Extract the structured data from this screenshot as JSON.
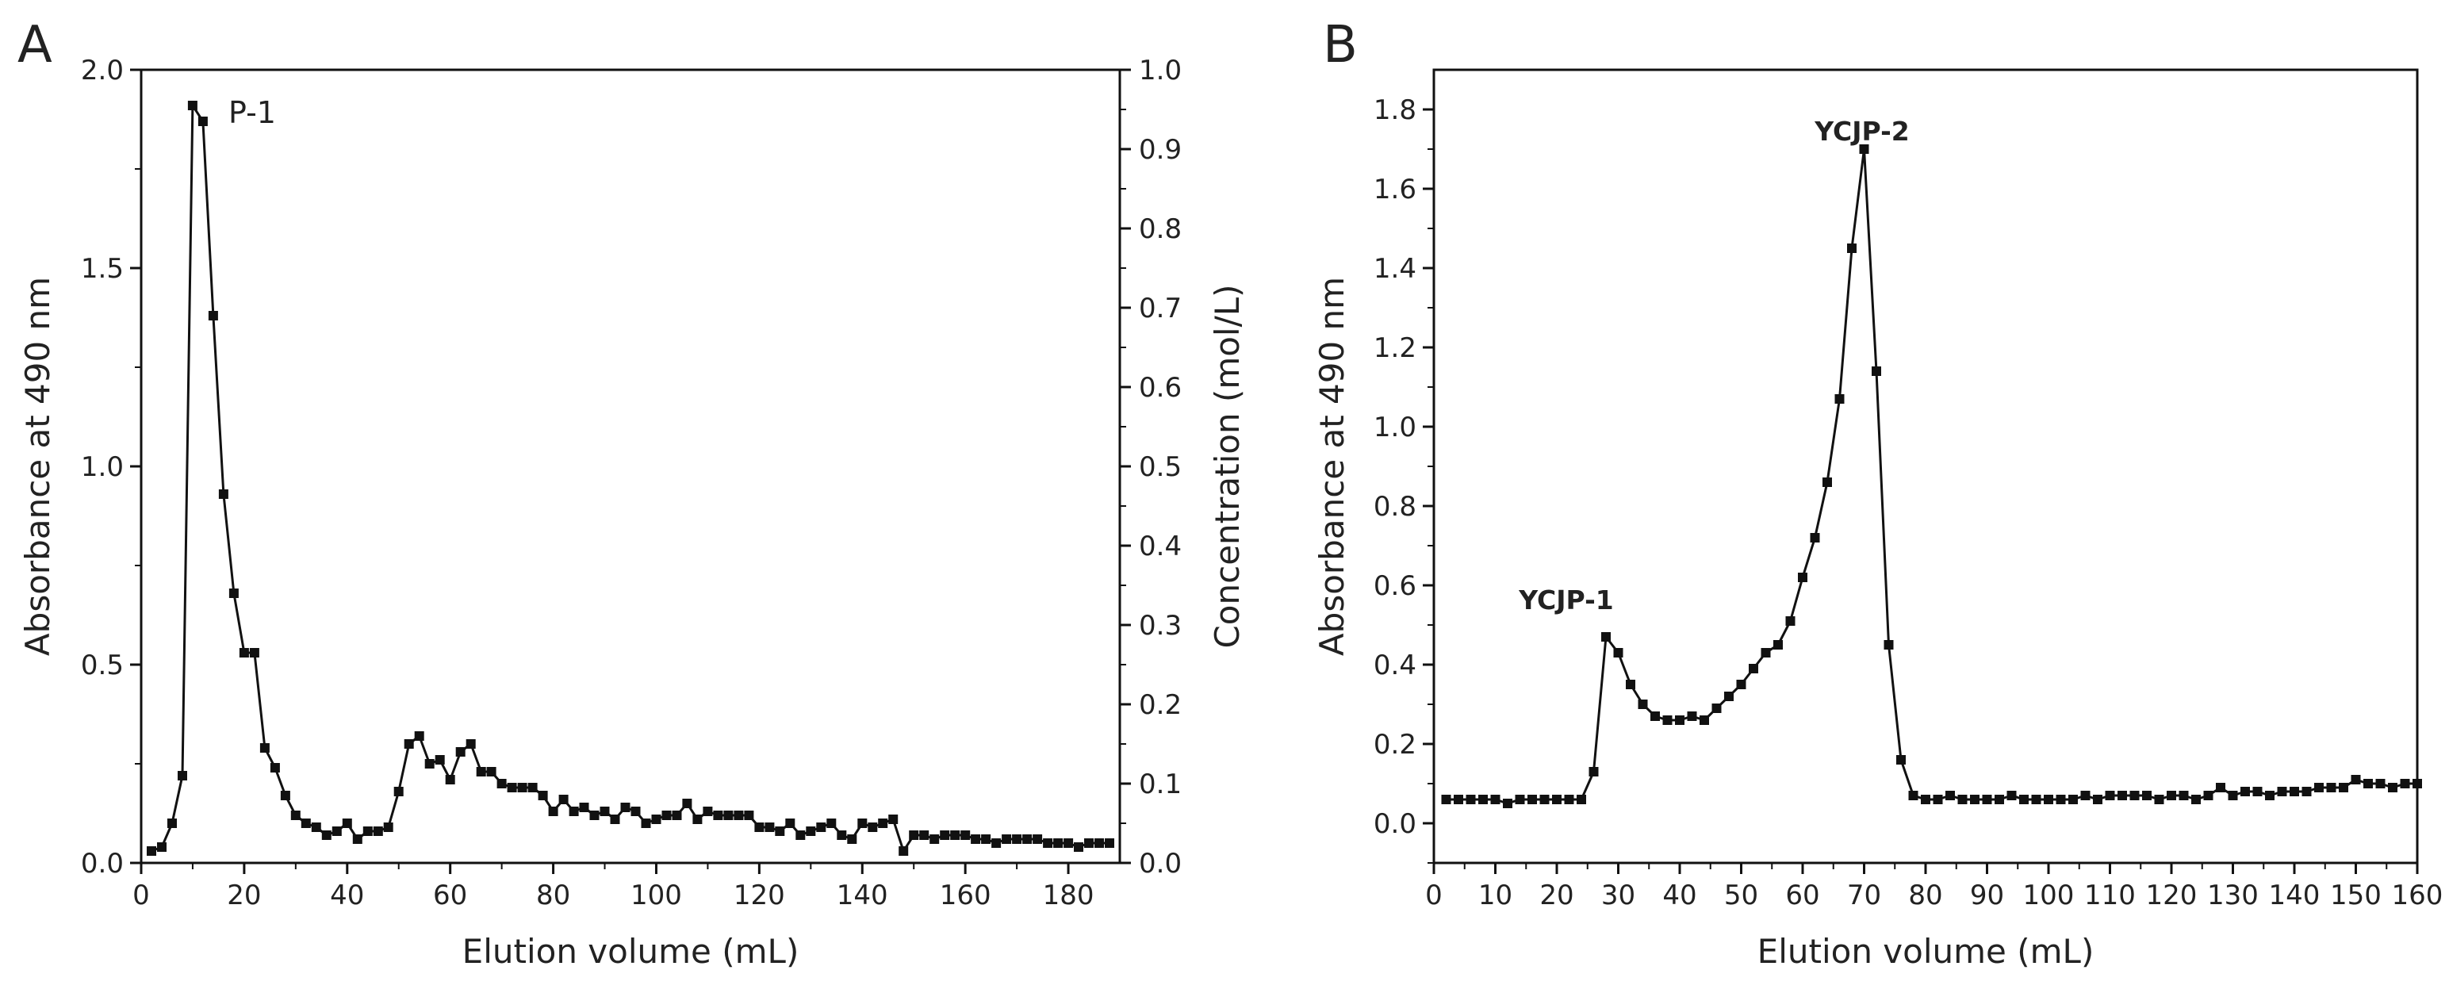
{
  "figure": {
    "ink_color": "#111111",
    "background": "#ffffff"
  },
  "chart_data": [
    {
      "panel": "A",
      "type": "line",
      "marker": "square",
      "title": "",
      "xlabel": "Elution volume (mL)",
      "ylabel": "Absorbance at 490 nm",
      "y2label": "Concentration (mol/L)",
      "xlim": [
        0,
        190
      ],
      "ylim": [
        0,
        2.0
      ],
      "y2lim": [
        0,
        1.0
      ],
      "xticks": [
        "0",
        "20",
        "40",
        "60",
        "80",
        "100",
        "120",
        "140",
        "160",
        "180"
      ],
      "yticks": [
        "0.0",
        "0.5",
        "1.0",
        "1.5",
        "2.0"
      ],
      "y2ticks": [
        "0.0",
        "0.1",
        "0.2",
        "0.3",
        "0.4",
        "0.5",
        "0.6",
        "0.7",
        "0.8",
        "0.9",
        "1.0"
      ],
      "annotations": [
        {
          "text": "P-1",
          "x": 10,
          "y": 1.91
        }
      ],
      "series": [
        {
          "name": "Absorbance at 490 nm",
          "x": [
            2,
            4,
            6,
            8,
            10,
            12,
            14,
            16,
            18,
            20,
            22,
            24,
            26,
            28,
            30,
            32,
            34,
            36,
            38,
            40,
            42,
            44,
            46,
            48,
            50,
            52,
            54,
            56,
            58,
            60,
            62,
            64,
            66,
            68,
            70,
            72,
            74,
            76,
            78,
            80,
            82,
            84,
            86,
            88,
            90,
            92,
            94,
            96,
            98,
            100,
            102,
            104,
            106,
            108,
            110,
            112,
            114,
            116,
            118,
            120,
            122,
            124,
            126,
            128,
            130,
            132,
            134,
            136,
            138,
            140,
            142,
            144,
            146,
            148,
            150,
            152,
            154,
            156,
            158,
            160,
            162,
            164,
            166,
            168,
            170,
            172,
            174,
            176,
            178,
            180,
            182,
            184,
            186,
            188
          ],
          "y": [
            0.03,
            0.04,
            0.1,
            0.22,
            1.91,
            1.87,
            1.38,
            0.93,
            0.68,
            0.53,
            0.53,
            0.29,
            0.24,
            0.17,
            0.12,
            0.1,
            0.09,
            0.07,
            0.08,
            0.1,
            0.06,
            0.08,
            0.08,
            0.09,
            0.18,
            0.3,
            0.32,
            0.25,
            0.26,
            0.21,
            0.28,
            0.3,
            0.23,
            0.23,
            0.2,
            0.19,
            0.19,
            0.19,
            0.17,
            0.13,
            0.16,
            0.13,
            0.14,
            0.12,
            0.13,
            0.11,
            0.14,
            0.13,
            0.1,
            0.11,
            0.12,
            0.12,
            0.15,
            0.11,
            0.13,
            0.12,
            0.12,
            0.12,
            0.12,
            0.09,
            0.09,
            0.08,
            0.1,
            0.07,
            0.08,
            0.09,
            0.1,
            0.07,
            0.06,
            0.1,
            0.09,
            0.1,
            0.11,
            0.03,
            0.07,
            0.07,
            0.06,
            0.07,
            0.07,
            0.07,
            0.06,
            0.06,
            0.05,
            0.06,
            0.06,
            0.06,
            0.06,
            0.05,
            0.05,
            0.05,
            0.04,
            0.05,
            0.05,
            0.05
          ]
        }
      ]
    },
    {
      "panel": "B",
      "type": "line",
      "marker": "square",
      "title": "",
      "xlabel": "Elution volume (mL)",
      "ylabel": "Absorbance at 490 nm",
      "xlim": [
        0,
        160
      ],
      "ylim": [
        -0.1,
        1.9
      ],
      "xticks": [
        "0",
        "10",
        "20",
        "30",
        "40",
        "50",
        "60",
        "70",
        "80",
        "90",
        "100",
        "110",
        "120",
        "130",
        "140",
        "150",
        "160"
      ],
      "yticks": [
        "0.0",
        "0.2",
        "0.4",
        "0.6",
        "0.8",
        "1.0",
        "1.2",
        "1.4",
        "1.6",
        "1.8"
      ],
      "annotations": [
        {
          "text": "YCJP-1",
          "x": 28,
          "y": 0.47
        },
        {
          "text": "YCJP-2",
          "x": 70,
          "y": 1.7
        }
      ],
      "series": [
        {
          "name": "Absorbance at 490 nm",
          "x": [
            2,
            4,
            6,
            8,
            10,
            12,
            14,
            16,
            18,
            20,
            22,
            24,
            26,
            28,
            30,
            32,
            34,
            36,
            38,
            40,
            42,
            44,
            46,
            48,
            50,
            52,
            54,
            56,
            58,
            60,
            62,
            64,
            66,
            68,
            70,
            72,
            74,
            76,
            78,
            80,
            82,
            84,
            86,
            88,
            90,
            92,
            94,
            96,
            98,
            100,
            102,
            104,
            106,
            108,
            110,
            112,
            114,
            116,
            118,
            120,
            122,
            124,
            126,
            128,
            130,
            132,
            134,
            136,
            138,
            140,
            142,
            144,
            146,
            148,
            150,
            152,
            154,
            156,
            158,
            160
          ],
          "y": [
            0.06,
            0.06,
            0.06,
            0.06,
            0.06,
            0.05,
            0.06,
            0.06,
            0.06,
            0.06,
            0.06,
            0.06,
            0.13,
            0.47,
            0.43,
            0.35,
            0.3,
            0.27,
            0.26,
            0.26,
            0.27,
            0.26,
            0.29,
            0.32,
            0.35,
            0.39,
            0.43,
            0.45,
            0.51,
            0.62,
            0.72,
            0.86,
            1.07,
            1.45,
            1.7,
            1.14,
            0.45,
            0.16,
            0.07,
            0.06,
            0.06,
            0.07,
            0.06,
            0.06,
            0.06,
            0.06,
            0.07,
            0.06,
            0.06,
            0.06,
            0.06,
            0.06,
            0.07,
            0.06,
            0.07,
            0.07,
            0.07,
            0.07,
            0.06,
            0.07,
            0.07,
            0.06,
            0.07,
            0.09,
            0.07,
            0.08,
            0.08,
            0.07,
            0.08,
            0.08,
            0.08,
            0.09,
            0.09,
            0.09,
            0.11,
            0.1,
            0.1,
            0.09,
            0.1,
            0.1
          ]
        }
      ]
    }
  ]
}
